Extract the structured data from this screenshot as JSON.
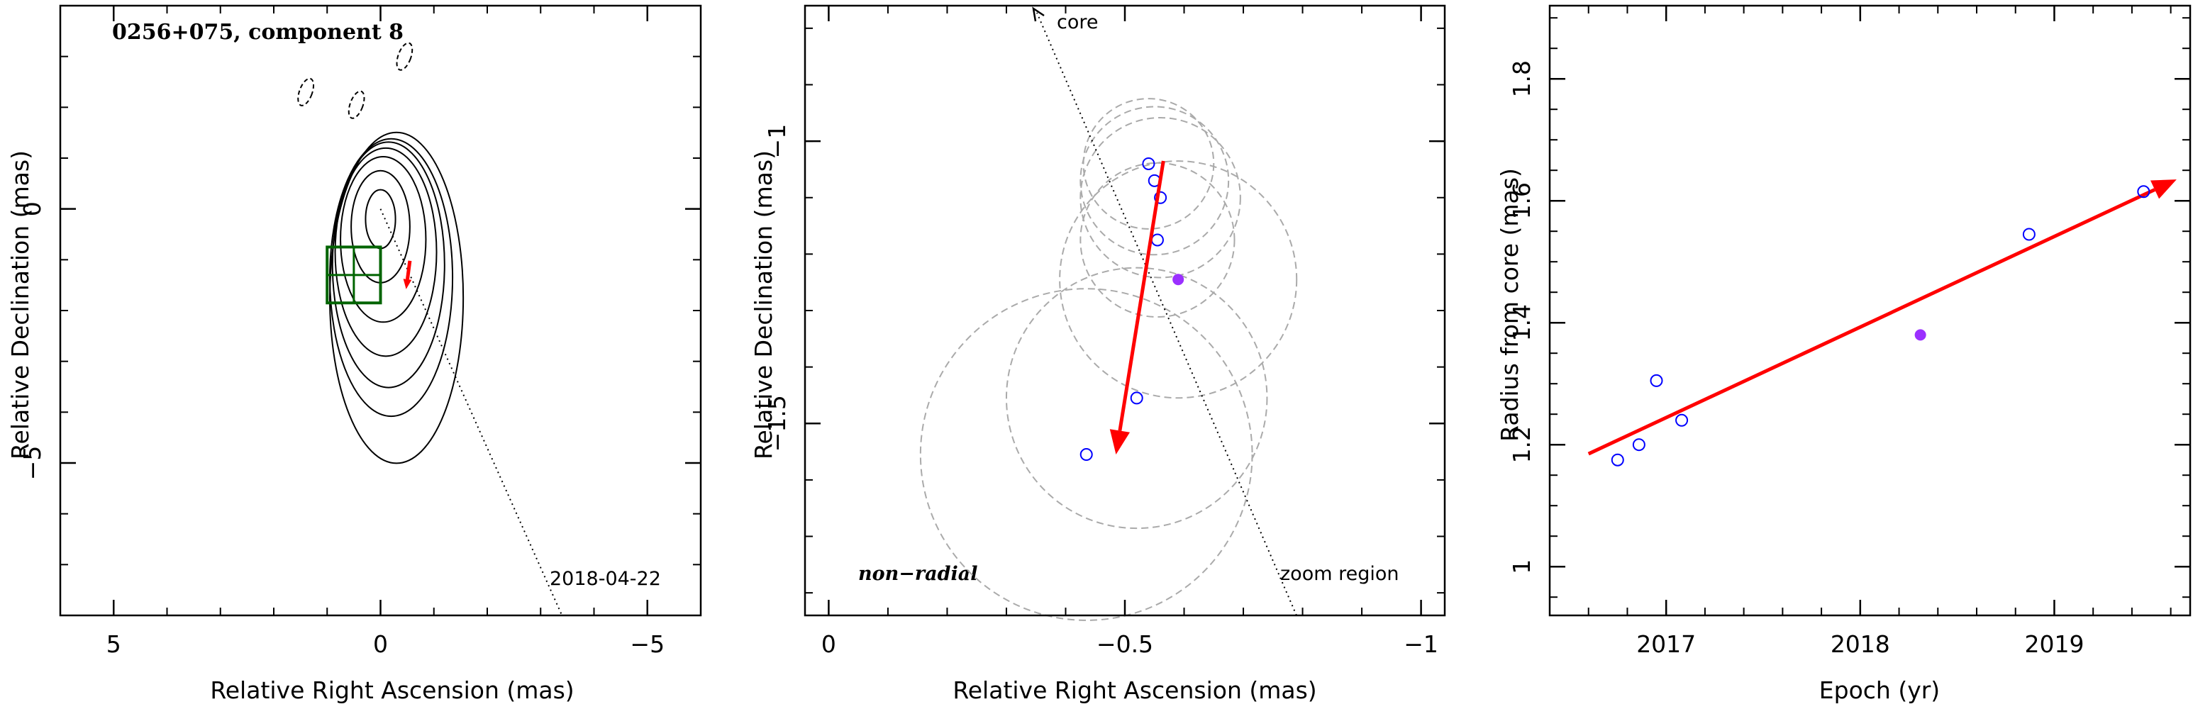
{
  "chart_data": [
    {
      "type": "scatter",
      "panel": "contour-map",
      "title": "0256+075, component 8",
      "xlabel": "Relative Right Ascension (mas)",
      "ylabel": "Relative Declination (mas)",
      "xlim": [
        6,
        -6
      ],
      "ylim": [
        -8,
        4
      ],
      "xticks": [
        5,
        0,
        -5
      ],
      "yticks": [
        0,
        -5
      ],
      "epoch_label": "2018-04-22",
      "zoom_box": {
        "ra": [
          1.0,
          0.0
        ],
        "dec": [
          -0.75,
          -1.85
        ]
      },
      "contours": [
        {
          "cx": 0,
          "cy": -0.2,
          "rx": 0.28,
          "ry": 0.55
        },
        {
          "cx": 0,
          "cy": -0.35,
          "rx": 0.55,
          "ry": 1.05
        },
        {
          "cx": -0.05,
          "cy": -0.6,
          "rx": 0.8,
          "ry": 1.55
        },
        {
          "cx": -0.1,
          "cy": -0.85,
          "rx": 0.95,
          "ry": 1.95
        },
        {
          "cx": -0.15,
          "cy": -1.1,
          "rx": 1.05,
          "ry": 2.3
        },
        {
          "cx": -0.2,
          "cy": -1.35,
          "rx": 1.15,
          "ry": 2.6
        },
        {
          "cx": -0.3,
          "cy": -1.75,
          "rx": 1.25,
          "ry": 3.1
        }
      ],
      "negative_contours": [
        {
          "x": 1.4,
          "y": 2.3
        },
        {
          "x": 0.45,
          "y": 2.05
        },
        {
          "x": -0.45,
          "y": 3.0
        }
      ]
    },
    {
      "type": "scatter",
      "panel": "zoom",
      "xlabel": "Relative Right Ascension (mas)",
      "ylabel": "Relative Declination (mas)",
      "xlim": [
        0.04,
        -1.04
      ],
      "ylim": [
        -1.84,
        -0.76
      ],
      "xticks": [
        0,
        -0.5,
        -1
      ],
      "yticks": [
        -1,
        -1.5
      ],
      "labels": {
        "core": "core",
        "motion": "non−radial",
        "region": "zoom region"
      },
      "points": [
        {
          "x": -0.54,
          "y": -1.04,
          "r": 0.11,
          "current": false
        },
        {
          "x": -0.55,
          "y": -1.07,
          "r": 0.125,
          "current": false
        },
        {
          "x": -0.56,
          "y": -1.1,
          "r": 0.135,
          "current": false
        },
        {
          "x": -0.555,
          "y": -1.175,
          "r": 0.13,
          "current": false
        },
        {
          "x": -0.59,
          "y": -1.245,
          "r": 0.2,
          "current": true
        },
        {
          "x": -0.52,
          "y": -1.455,
          "r": 0.22,
          "current": false
        },
        {
          "x": -0.435,
          "y": -1.555,
          "r": 0.28,
          "current": false
        }
      ],
      "arrow": {
        "x0": -0.565,
        "y0": -1.035,
        "x1": -0.485,
        "y1": -1.555
      }
    },
    {
      "type": "scatter",
      "panel": "radius-vs-epoch",
      "xlabel": "Epoch (yr)",
      "ylabel": "Radius from core (mas)",
      "xlim": [
        2016.4,
        2019.7
      ],
      "ylim": [
        0.92,
        1.92
      ],
      "xticks": [
        2017,
        2018,
        2019
      ],
      "yticks": [
        1,
        1.2,
        1.4,
        1.6,
        1.8
      ],
      "points": [
        {
          "x": 2016.75,
          "y": 1.175,
          "current": false
        },
        {
          "x": 2016.86,
          "y": 1.2,
          "current": false
        },
        {
          "x": 2016.95,
          "y": 1.305,
          "current": false
        },
        {
          "x": 2017.08,
          "y": 1.24,
          "current": false
        },
        {
          "x": 2018.31,
          "y": 1.38,
          "current": true
        },
        {
          "x": 2018.87,
          "y": 1.545,
          "current": false
        },
        {
          "x": 2019.46,
          "y": 1.615,
          "current": false
        }
      ],
      "fit": {
        "x0": 2016.6,
        "y0": 1.185,
        "x1": 2019.63,
        "y1": 1.635
      }
    }
  ],
  "colors": {
    "fit": "#ff0000",
    "points": "#0000ff",
    "current_point": "#9b30ff",
    "zoom_box": "#006400",
    "circles": "#aaaaaa"
  }
}
